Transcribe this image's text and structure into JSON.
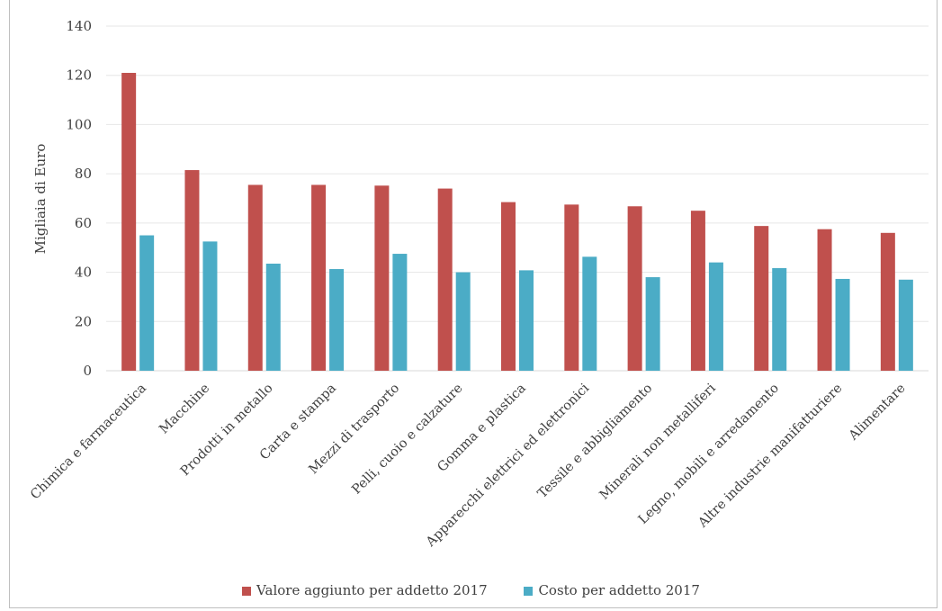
{
  "chart_data": {
    "type": "bar",
    "title": "",
    "xlabel": "",
    "ylabel": "Migliaia di Euro",
    "ylim": [
      0,
      140
    ],
    "yticks": [
      "0",
      "20",
      "40",
      "60",
      "80",
      "100",
      "120",
      "140"
    ],
    "grid": true,
    "legend_position": "bottom",
    "categories": [
      "Chimica e farmaceutica",
      "Macchine",
      "Prodotti in metallo",
      "Carta e stampa",
      "Mezzi di trasporto",
      "Pelli, cuoio e calzature",
      "Gomma e plastica",
      "Apparecchi elettrici ed elettronici",
      "Tessile e abbigliamento",
      "Minerali non metalliferi",
      "Legno, mobili e arredamento",
      "Altre industrie manifatturiere",
      "Alimentare"
    ],
    "series": [
      {
        "name": "Valore aggiunto per addetto 2017",
        "color": "#c0504d",
        "values": [
          121,
          81.5,
          75.5,
          75.5,
          75.2,
          74,
          68.5,
          67.5,
          66.8,
          65,
          58.8,
          57.5,
          56
        ]
      },
      {
        "name": "Costo per addetto 2017",
        "color": "#4bacc6",
        "values": [
          55,
          52.5,
          43.5,
          41.3,
          47.5,
          40,
          40.8,
          46.3,
          38,
          44,
          41.7,
          37.3,
          37
        ]
      }
    ]
  }
}
